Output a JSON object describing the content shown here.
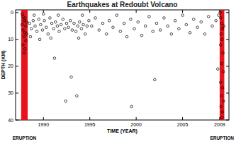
{
  "chart_data": {
    "type": "scatter",
    "title": "Earthquakes at Redoubt Volcano",
    "x_label": "TIME (YEAR)",
    "y_label": "DEPTH (KM)",
    "color": "#000000",
    "marker": "circle-open",
    "grid": false,
    "x": [
      1987.7,
      1987.8,
      1987.9,
      1987.7,
      1988.0,
      1988.1,
      1987.8,
      1988.0,
      1987.9,
      1988.1,
      1987.8,
      1988.0,
      1987.9,
      1988.2,
      1988.2,
      1988.5,
      1988.7,
      1988.9,
      1989.1,
      1989.3,
      1989.5,
      1989.7,
      1989.9,
      1990.1,
      1990.3,
      1990.5,
      1990.7,
      1990.9,
      1991.1,
      1991.3,
      1991.5,
      1991.7,
      1991.9,
      1992.1,
      1992.3,
      1988.6,
      1989.0,
      1989.6,
      1990.0,
      1990.8,
      1991.2,
      1991.6,
      1992.5,
      1992.7,
      1992.9,
      1993.1,
      1993.3,
      1993.5,
      1993.7,
      1993.9,
      1994.1,
      1994.3,
      1994.5,
      1994.7,
      1994.9,
      1993.0,
      1993.6,
      1992.4,
      1993.8,
      1994.2,
      1995.2,
      1995.6,
      1996.0,
      1996.4,
      1996.8,
      1997.1,
      1997.5,
      1997.9,
      1998.3,
      1998.7,
      1999.0,
      1999.4,
      1999.5,
      1999.8,
      2000.2,
      2000.6,
      2001.0,
      2001.4,
      2001.8,
      2002.0,
      2002.2,
      2002.6,
      2003.0,
      2003.4,
      2003.8,
      2004.2,
      2004.6,
      2005.0,
      2005.4,
      2005.8,
      2006.2,
      2006.6,
      2007.0,
      2007.4,
      2007.8,
      2008.2,
      2008.6,
      2009.05,
      2009.1,
      2009.2,
      2009.3,
      2009.15,
      2009.25,
      2009.1,
      2009.35,
      2009.2,
      2009.4,
      2009.1,
      2009.3,
      2009.2,
      2009.4,
      2009.15,
      2009.3,
      2009.25,
      2008.8,
      2008.9,
      2009.45
    ],
    "values": [
      0.5,
      1.5,
      3,
      4.5,
      2,
      5,
      6.5,
      7.5,
      9,
      10.5,
      12,
      13.5,
      15,
      3.5,
      8,
      4,
      6,
      3,
      5,
      7,
      2.5,
      4.5,
      6.5,
      3,
      5.5,
      8,
      2,
      4,
      6,
      3.5,
      5,
      7,
      4.5,
      2.5,
      6,
      9,
      1,
      10,
      0.5,
      9.5,
      17,
      1,
      4,
      5.5,
      3,
      6.5,
      4,
      7,
      5,
      3.5,
      6,
      4.5,
      8,
      5,
      3,
      24,
      31,
      33,
      9.5,
      1,
      5,
      2,
      6.5,
      4,
      8,
      3,
      5.5,
      1,
      7,
      4,
      9,
      2.5,
      35,
      6,
      3.5,
      8.5,
      5,
      1.5,
      7,
      25,
      4,
      6.5,
      2,
      5,
      8,
      3,
      6,
      1,
      4.5,
      7.5,
      2.5,
      5.5,
      3.5,
      8,
      1.5,
      5,
      3,
      0,
      2,
      4,
      6,
      8,
      10,
      12,
      15,
      19,
      22,
      26,
      28,
      31,
      33,
      35,
      37,
      39,
      21,
      1,
      5
    ],
    "xlim": [
      1987,
      2010
    ],
    "xticks": [
      1990,
      1995,
      2000,
      2005,
      2009
    ],
    "ylim": [
      40,
      -1
    ],
    "yticks": [
      0,
      10,
      20,
      30,
      40
    ],
    "annotations": [
      {
        "text": "ERUPTION",
        "x_range": [
          1987.6,
          1988.3
        ],
        "color": "#e8141c"
      },
      {
        "text": "ERUPTION",
        "x_range": [
          2009.0,
          2009.5
        ],
        "color": "#e8141c"
      }
    ]
  }
}
